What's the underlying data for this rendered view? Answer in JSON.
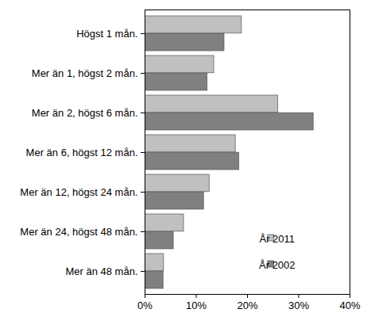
{
  "chart_data": {
    "type": "bar",
    "orientation": "horizontal",
    "categories": [
      "Högst 1 mån.",
      "Mer än 1, högst 2 mån.",
      "Mer än 2, högst 6 mån.",
      "Mer än 6, högst 12 mån.",
      "Mer än 12, högst 24 mån.",
      "Mer än 24, högst 48 mån.",
      "Mer än 48 mån."
    ],
    "series": [
      {
        "name": "År 2011",
        "color": "#c0c0c0",
        "values": [
          18.9,
          13.5,
          26.0,
          17.7,
          12.6,
          7.6,
          3.7
        ]
      },
      {
        "name": "År 2002",
        "color": "#808080",
        "values": [
          15.5,
          12.2,
          32.9,
          18.4,
          11.5,
          5.6,
          3.6
        ]
      }
    ],
    "xlim": [
      0,
      40
    ],
    "xticks": [
      {
        "value": 0,
        "label": "0%"
      },
      {
        "value": 10,
        "label": "10%"
      },
      {
        "value": 20,
        "label": "20%"
      },
      {
        "value": 30,
        "label": "30%"
      },
      {
        "value": 40,
        "label": "40%"
      }
    ],
    "grid": false,
    "legend": "lower right"
  }
}
